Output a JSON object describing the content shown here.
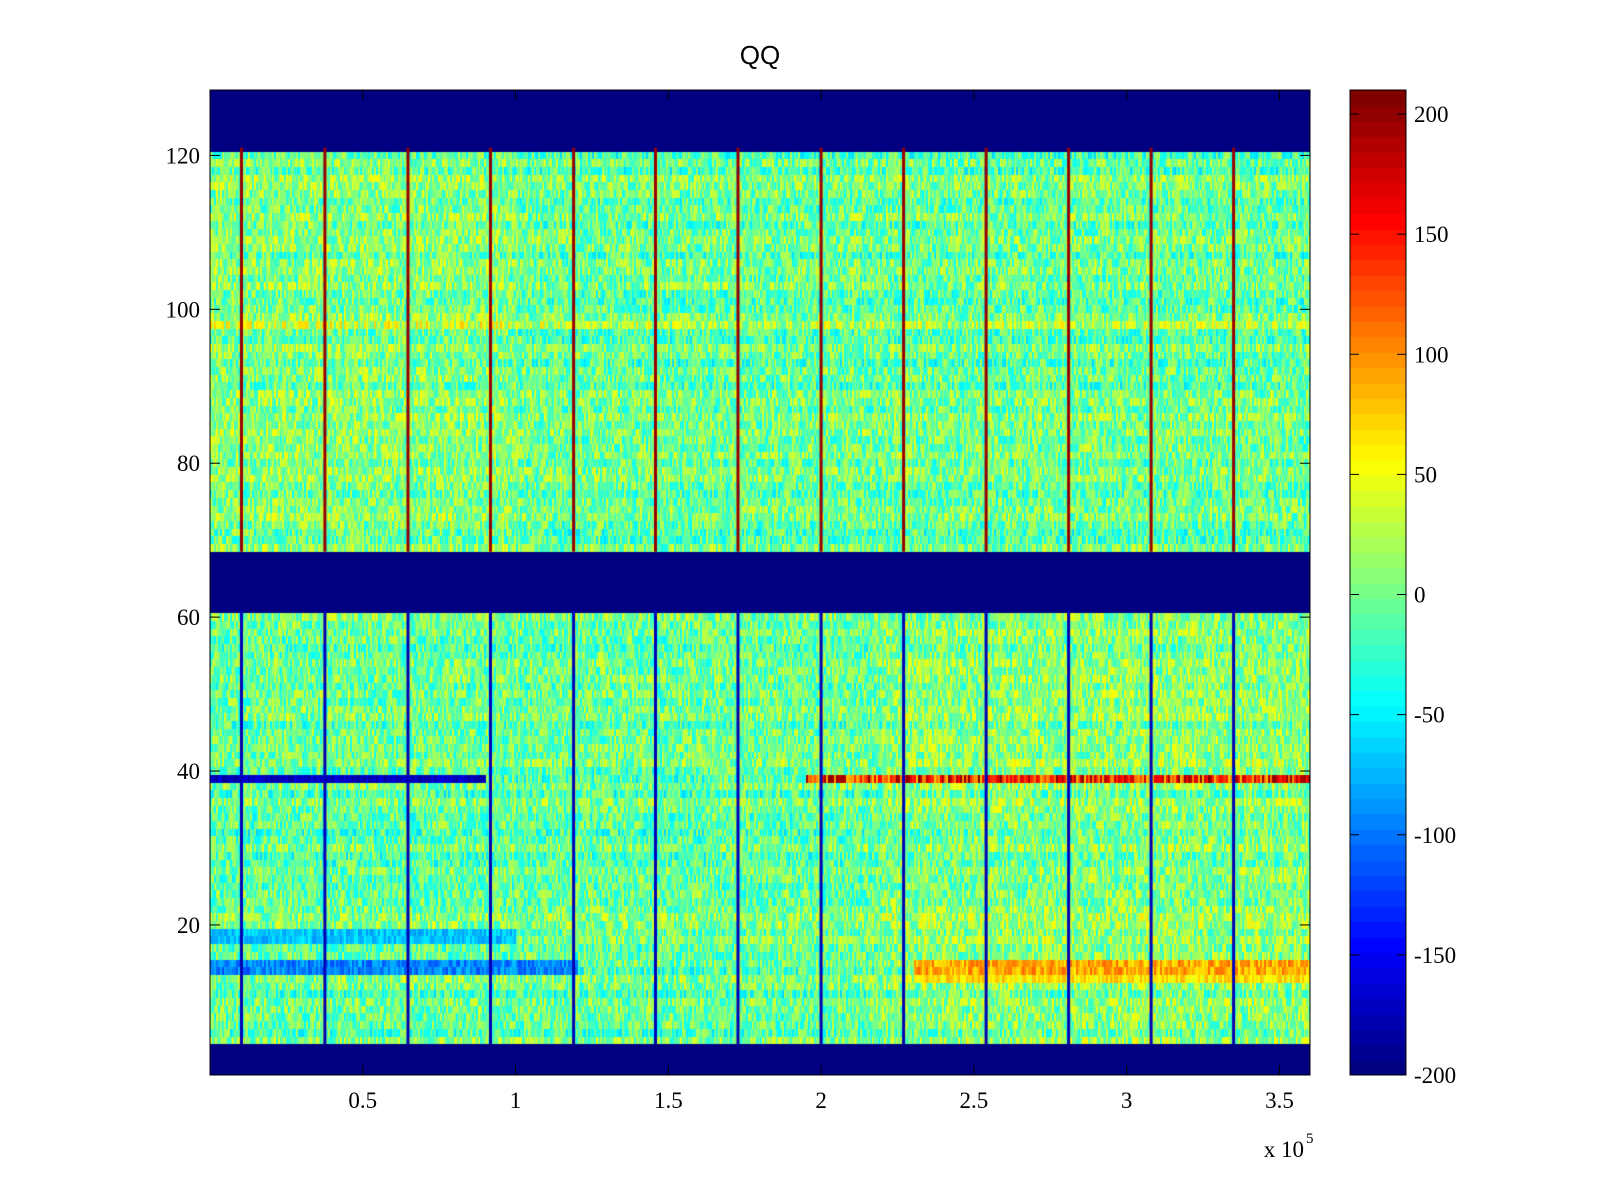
{
  "chart_data": {
    "type": "heatmap",
    "title": "QQ",
    "xlabel": "",
    "ylabel": "",
    "x_multiplier_label": "x 10",
    "x_multiplier_exponent": "5",
    "xlim": [
      0,
      3.6
    ],
    "ylim": [
      1,
      128
    ],
    "xticks": [
      0.5,
      1,
      1.5,
      2,
      2.5,
      3,
      3.5
    ],
    "xtick_labels": [
      "0.5",
      "1",
      "1.5",
      "2",
      "2.5",
      "3",
      "3.5"
    ],
    "yticks": [
      20,
      40,
      60,
      80,
      100,
      120
    ],
    "ytick_labels": [
      "20",
      "40",
      "60",
      "80",
      "100",
      "120"
    ],
    "colormap": "jet",
    "clim": [
      -200,
      210
    ],
    "colorbar_ticks": [
      200,
      150,
      100,
      50,
      0,
      -50,
      -100,
      -150,
      -200
    ],
    "colorbar_tick_labels": [
      "200",
      "150",
      "100",
      "50",
      "0",
      "-50",
      "-100",
      "-150",
      "-200"
    ],
    "masked_row_bands": [
      [
        1,
        4
      ],
      [
        61,
        68
      ],
      [
        121,
        128
      ]
    ],
    "mask_value": -200,
    "vertical_line_x": [
      0.103,
      0.376,
      0.648,
      0.918,
      1.19,
      1.458,
      1.728,
      2.0,
      2.27,
      2.54,
      2.81,
      3.08,
      3.35
    ],
    "vertical_line_x_scaled": "x 10^5",
    "highlight_rows": [
      {
        "row": 39,
        "description": "strong negative (~-190) for x<0.9, near 0 in middle, strong positive (~150-210) for x>2"
      },
      {
        "row": 19,
        "description": "negative (~-100) for x<1"
      },
      {
        "row": 14,
        "description": "negative (~-120) for x<1.2, positive (~60-100) for x>2.3"
      },
      {
        "row": 98,
        "description": "slightly positive (~40)"
      }
    ],
    "background_value_range": [
      -60,
      50
    ]
  }
}
